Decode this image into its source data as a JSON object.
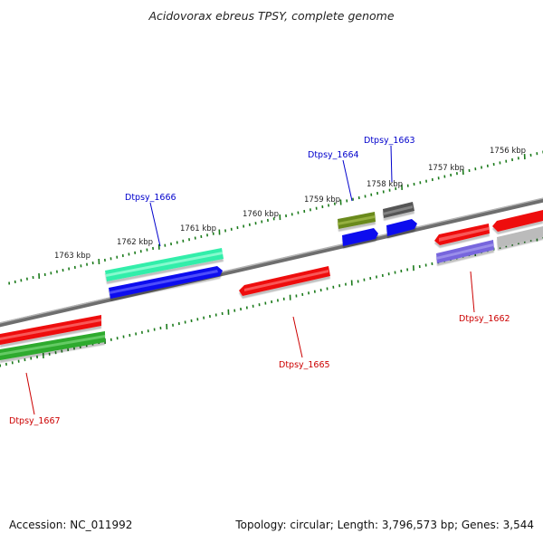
{
  "title": "Acidovorax ebreus TPSY, complete genome",
  "footer": {
    "accession": "Accession: NC_011992",
    "summary": "Topology: circular; Length: 3,796,573 bp; Genes: 3,544"
  },
  "scale_labels": [
    "1763 kbp",
    "1762 kbp",
    "1761 kbp",
    "1760 kbp",
    "1759 kbp",
    "1758 kbp",
    "1757 kbp",
    "1756 kbp"
  ],
  "genes": [
    {
      "id": "Dtpsy_1667",
      "label": "Dtpsy_1667",
      "label_color": "#cc0000",
      "colors": [
        "#ee1111",
        "#2daa2d"
      ]
    },
    {
      "id": "Dtpsy_1666",
      "label": "Dtpsy_1666",
      "label_color": "#0000cc",
      "colors": [
        "#33eeaa",
        "#1111ee"
      ]
    },
    {
      "id": "Dtpsy_1665",
      "label": "Dtpsy_1665",
      "label_color": "#cc0000",
      "colors": [
        "#ee1111"
      ]
    },
    {
      "id": "Dtpsy_1664",
      "label": "Dtpsy_1664",
      "label_color": "#0000cc",
      "colors": [
        "#6b8a1e",
        "#1111ee"
      ]
    },
    {
      "id": "Dtpsy_1663",
      "label": "Dtpsy_1663",
      "label_color": "#0000cc",
      "colors": [
        "#555555",
        "#1111ee"
      ]
    },
    {
      "id": "Dtpsy_1662",
      "label": "Dtpsy_1662",
      "label_color": "#cc0000",
      "colors": [
        "#ee1111",
        "#7766dd",
        "#bbbbbb"
      ]
    }
  ],
  "colors": {
    "backbone": "#808080",
    "ticks": "#1a7a1a"
  }
}
